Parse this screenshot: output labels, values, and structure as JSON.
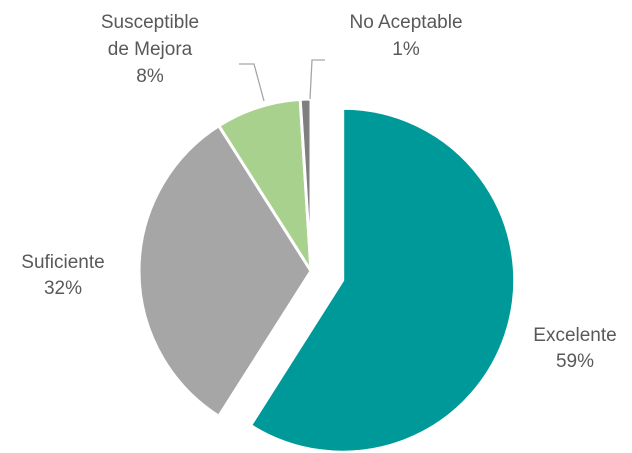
{
  "chart_data": {
    "type": "pie",
    "title": "",
    "slices": [
      {
        "label_lines": [
          "Excelente"
        ],
        "value": 59,
        "value_label": "59%",
        "color": "#009999",
        "exploded": true
      },
      {
        "label_lines": [
          "Suficiente"
        ],
        "value": 32,
        "value_label": "32%",
        "color": "#a6a6a6",
        "exploded": false
      },
      {
        "label_lines": [
          "Susceptible",
          "de Mejora"
        ],
        "value": 8,
        "value_label": "8%",
        "color": "#a9d18e",
        "exploded": false
      },
      {
        "label_lines": [
          "No Aceptable"
        ],
        "value": 1,
        "value_label": "1%",
        "color": "#7f7f7f",
        "exploded": false
      }
    ],
    "legend": "none",
    "start_angle_deg": 0,
    "direction": "clockwise"
  }
}
